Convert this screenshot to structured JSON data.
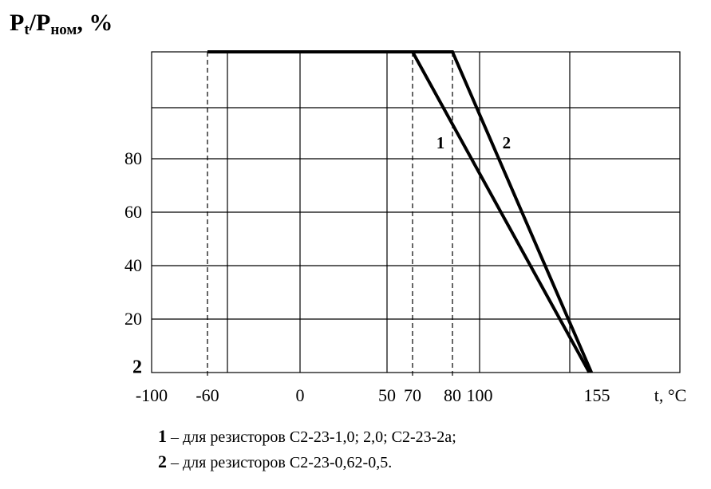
{
  "chart_data": {
    "type": "line",
    "ylabel": {
      "p1": "P",
      "sub1": "t",
      "slash": "/",
      "p2": "P",
      "sub2": "ном",
      "unit": ", %"
    },
    "xlabel": "t, °C",
    "x_ticks": [
      {
        "value": -100,
        "label": "-100"
      },
      {
        "value": -60,
        "label": "-60"
      },
      {
        "value": 0,
        "label": "0"
      },
      {
        "value": 50,
        "label": "50"
      },
      {
        "value": 70,
        "label": "70"
      },
      {
        "value": 80,
        "label": "80"
      },
      {
        "value": 100,
        "label": "100"
      },
      {
        "value": 155,
        "label": "155"
      }
    ],
    "y_ticks": [
      {
        "value": 2,
        "label": "2",
        "bold": true
      },
      {
        "value": 20,
        "label": "20"
      },
      {
        "value": 40,
        "label": "40"
      },
      {
        "value": 60,
        "label": "60"
      },
      {
        "value": 80,
        "label": "80"
      }
    ],
    "grid": true,
    "dashed_verticals": [
      -60,
      70,
      80
    ],
    "series": [
      {
        "name": "1",
        "x": [
          -60,
          70,
          148
        ],
        "y": [
          100,
          100,
          0
        ]
      },
      {
        "name": "2",
        "x": [
          -60,
          80,
          150
        ],
        "y": [
          100,
          100,
          0
        ]
      }
    ],
    "curve_labels": [
      {
        "text": "1",
        "x": 77,
        "y": 83
      },
      {
        "text": "2",
        "x": 109,
        "y": 83
      }
    ],
    "legend": [
      {
        "num": "1",
        "dash": " – ",
        "text": "для резисторов С2-23-1,0; 2,0; С2-23-2а;"
      },
      {
        "num": "2",
        "dash": " – ",
        "text": "для резисторов С2-23-0,62-0,5."
      }
    ]
  }
}
